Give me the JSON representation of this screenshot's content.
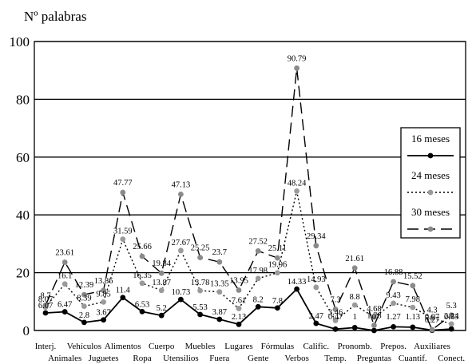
{
  "chart_data": {
    "type": "line",
    "ylabel": "Nº palabras",
    "ylim": [
      0,
      100
    ],
    "yticks": [
      0,
      20,
      40,
      60,
      80,
      100
    ],
    "grid": "horizontal",
    "legend_position": "right",
    "categories": [
      "Interj.",
      "Animales",
      "Vehículos",
      "Juguetes",
      "Alimentos",
      "Ropa",
      "Cuerpo",
      "Utensilios",
      "Muebles",
      "Fuera",
      "Lugares",
      "Gente",
      "Fórmulas",
      "Verbos",
      "Calific.",
      "Temp.",
      "Pronomb.",
      "Preguntas",
      "Prepos.",
      "Cuantif.",
      "Auxiliares",
      "Conect."
    ],
    "category_label_rows": [
      "top",
      "bottom",
      "top",
      "bottom",
      "top",
      "bottom",
      "top",
      "bottom",
      "top",
      "bottom",
      "top",
      "bottom",
      "top",
      "bottom",
      "top",
      "bottom",
      "top",
      "bottom",
      "top",
      "bottom",
      "top",
      "bottom"
    ],
    "series": [
      {
        "name": "16 meses",
        "style": "solid",
        "color": "#000000",
        "values": [
          6.07,
          6.47,
          2.8,
          3.67,
          11.4,
          6.53,
          5.2,
          10.73,
          5.53,
          3.87,
          2.13,
          8.2,
          7.8,
          14.33,
          2.47,
          0.47,
          1,
          0,
          1.27,
          1.13,
          0.07,
          0.53
        ]
      },
      {
        "name": "24 meses",
        "style": "dotted",
        "color": "#9a9a9a",
        "values": [
          8.07,
          16.1,
          8.39,
          9.85,
          31.59,
          16.35,
          13.87,
          27.67,
          13.78,
          13.35,
          7.61,
          17.98,
          19.96,
          48.24,
          14.93,
          3.46,
          8.8,
          4.68,
          9.43,
          7.98,
          4.3,
          2.24
        ]
      },
      {
        "name": "30 meses",
        "style": "dashed",
        "color": "#8a8a8a",
        "values": [
          8.7,
          23.61,
          12.39,
          13.86,
          47.77,
          25.66,
          19.84,
          47.13,
          25.25,
          23.7,
          13.95,
          27.52,
          25.11,
          90.79,
          29.34,
          7.3,
          21.61,
          1.78,
          16.88,
          15.52,
          0.27,
          5.3
        ]
      }
    ]
  }
}
